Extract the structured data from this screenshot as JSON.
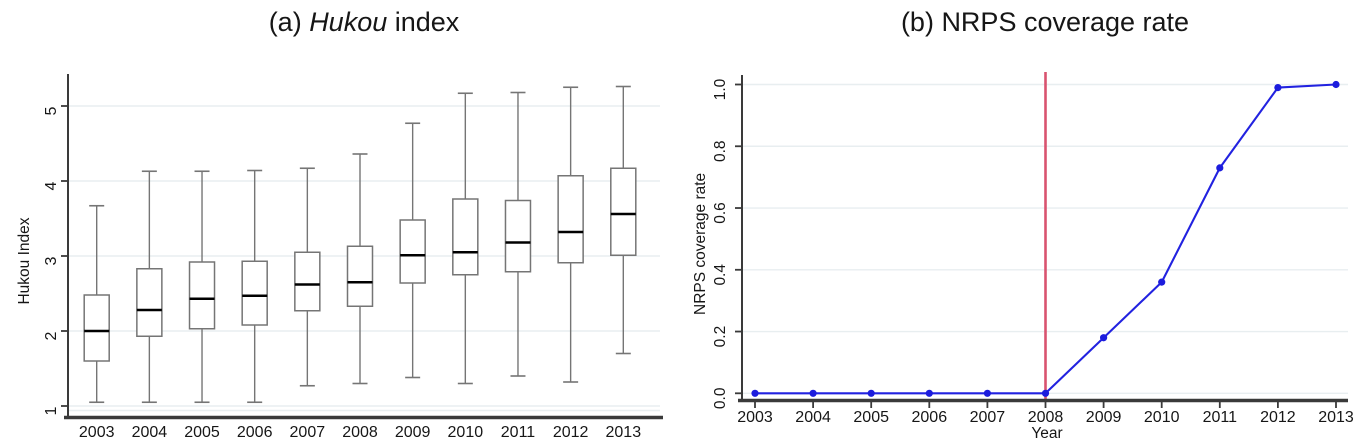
{
  "figure": {
    "background": "#ffffff",
    "panels": [
      {
        "id": "a",
        "title_parts": {
          "prefix": "(a) ",
          "italic": "Hukou",
          "suffix": " index"
        }
      },
      {
        "id": "b",
        "title_parts": {
          "prefix": "(b) NRPS coverage rate",
          "italic": "",
          "suffix": ""
        }
      }
    ]
  },
  "chart_data": [
    {
      "type": "box",
      "title": "(a) Hukou index",
      "xlabel": "",
      "ylabel": "Hukou Index",
      "categories": [
        "2003",
        "2004",
        "2005",
        "2006",
        "2007",
        "2008",
        "2009",
        "2010",
        "2011",
        "2012",
        "2013"
      ],
      "yticks": [
        "1",
        "2",
        "3",
        "4",
        "5"
      ],
      "ylim": [
        1,
        5.45
      ],
      "grid": true,
      "legend": "none",
      "boxes": [
        {
          "category": "2003",
          "low": 1.05,
          "q1": 1.6,
          "median": 2.0,
          "q3": 2.48,
          "high": 3.67
        },
        {
          "category": "2004",
          "low": 1.05,
          "q1": 1.93,
          "median": 2.28,
          "q3": 2.83,
          "high": 4.13
        },
        {
          "category": "2005",
          "low": 1.05,
          "q1": 2.03,
          "median": 2.43,
          "q3": 2.92,
          "high": 4.13
        },
        {
          "category": "2006",
          "low": 1.05,
          "q1": 2.08,
          "median": 2.47,
          "q3": 2.93,
          "high": 4.14
        },
        {
          "category": "2007",
          "low": 1.27,
          "q1": 2.27,
          "median": 2.62,
          "q3": 3.05,
          "high": 4.17
        },
        {
          "category": "2008",
          "low": 1.3,
          "q1": 2.33,
          "median": 2.65,
          "q3": 3.13,
          "high": 4.36
        },
        {
          "category": "2009",
          "low": 1.38,
          "q1": 2.64,
          "median": 3.01,
          "q3": 3.48,
          "high": 4.77
        },
        {
          "category": "2010",
          "low": 1.3,
          "q1": 2.75,
          "median": 3.05,
          "q3": 3.76,
          "high": 5.17
        },
        {
          "category": "2011",
          "low": 1.4,
          "q1": 2.79,
          "median": 3.18,
          "q3": 3.74,
          "high": 5.18
        },
        {
          "category": "2012",
          "low": 1.32,
          "q1": 2.91,
          "median": 3.32,
          "q3": 4.07,
          "high": 5.25
        },
        {
          "category": "2013",
          "low": 1.7,
          "q1": 3.01,
          "median": 3.56,
          "q3": 4.17,
          "high": 5.26
        }
      ]
    },
    {
      "type": "line",
      "title": "(b) NRPS coverage rate",
      "xlabel": "Year",
      "ylabel": "NRPS coverage rate",
      "x": [
        "2003",
        "2004",
        "2005",
        "2006",
        "2007",
        "2008",
        "2009",
        "2010",
        "2011",
        "2012",
        "2013"
      ],
      "series": [
        {
          "name": "NRPS coverage rate",
          "values": [
            0.0,
            0.0,
            0.0,
            0.0,
            0.0,
            0.0,
            0.18,
            0.36,
            0.73,
            0.99,
            1.0
          ]
        }
      ],
      "yticks": [
        "0.0",
        "0.2",
        "0.4",
        "0.6",
        "0.8",
        "1.0"
      ],
      "ylim": [
        0,
        1.03
      ],
      "grid": true,
      "legend": "none",
      "vline": {
        "x": "2008"
      }
    }
  ],
  "colors": {
    "line_blue": "#2222e0",
    "marker_blue": "#1c1cdd",
    "vline_red": "#d9536f",
    "grid": "#e8eef0",
    "axis": "#3a3a3a",
    "box_stroke": "#757575",
    "median": "#000000",
    "text": "#161616"
  }
}
